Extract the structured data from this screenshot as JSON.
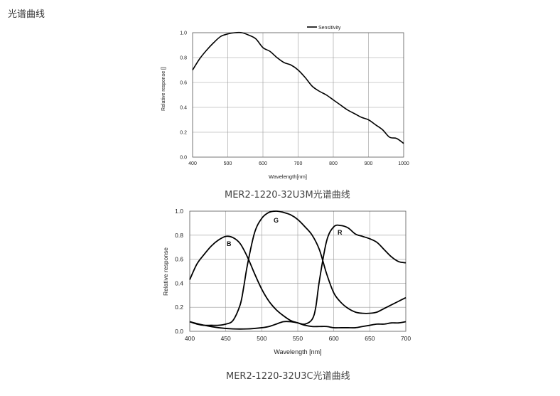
{
  "page": {
    "heading": "光谱曲线",
    "caption_mono": "MER2-1220-32U3M光谱曲线",
    "caption_color": "MER2-1220-32U3C光谱曲线"
  },
  "chart_data": [
    {
      "type": "line",
      "title": "",
      "xlabel": "Wavelength[nm]",
      "ylabel": "Relative response []",
      "xlim": [
        400,
        1000
      ],
      "ylim": [
        0,
        1.0
      ],
      "xticks": [
        "400",
        "500",
        "600",
        "700",
        "800",
        "900",
        "1000"
      ],
      "yticks": [
        "0.0",
        "0.2",
        "0.4",
        "0.6",
        "0.8",
        "1.0"
      ],
      "grid": true,
      "legend": "top-right",
      "series": [
        {
          "name": "Sensitivity",
          "x": [
            400,
            420,
            440,
            460,
            480,
            500,
            520,
            540,
            560,
            580,
            600,
            620,
            640,
            660,
            680,
            700,
            720,
            740,
            760,
            780,
            800,
            820,
            840,
            860,
            880,
            900,
            920,
            940,
            960,
            980,
            1000
          ],
          "y": [
            0.7,
            0.79,
            0.86,
            0.92,
            0.97,
            0.99,
            1.0,
            1.0,
            0.98,
            0.95,
            0.88,
            0.85,
            0.8,
            0.76,
            0.74,
            0.7,
            0.64,
            0.57,
            0.53,
            0.5,
            0.46,
            0.42,
            0.38,
            0.35,
            0.32,
            0.3,
            0.26,
            0.22,
            0.16,
            0.15,
            0.11
          ]
        }
      ]
    },
    {
      "type": "line",
      "title": "",
      "xlabel": "Wavelength [nm]",
      "ylabel": "Relative response",
      "xlim": [
        400,
        700
      ],
      "ylim": [
        0,
        1.0
      ],
      "xticks": [
        "400",
        "450",
        "500",
        "550",
        "600",
        "650",
        "700"
      ],
      "yticks": [
        "0.0",
        "0.2",
        "0.4",
        "0.6",
        "0.8",
        "1.0"
      ],
      "grid": true,
      "legend": "none",
      "series": [
        {
          "name": "B",
          "x": [
            400,
            410,
            420,
            430,
            440,
            450,
            460,
            470,
            480,
            490,
            500,
            510,
            520,
            530,
            540,
            550,
            560,
            570,
            580,
            590,
            600,
            610,
            620,
            630,
            640,
            650,
            660,
            670,
            680,
            690,
            700
          ],
          "y": [
            0.43,
            0.56,
            0.64,
            0.71,
            0.76,
            0.79,
            0.78,
            0.73,
            0.62,
            0.48,
            0.35,
            0.25,
            0.18,
            0.13,
            0.09,
            0.07,
            0.05,
            0.04,
            0.04,
            0.04,
            0.03,
            0.03,
            0.03,
            0.03,
            0.04,
            0.05,
            0.06,
            0.06,
            0.07,
            0.07,
            0.08
          ]
        },
        {
          "name": "G",
          "x": [
            400,
            410,
            420,
            430,
            440,
            450,
            460,
            470,
            475,
            480,
            490,
            500,
            510,
            520,
            530,
            540,
            550,
            560,
            570,
            580,
            590,
            600,
            610,
            620,
            630,
            640,
            650,
            660,
            670,
            680,
            690,
            700
          ],
          "y": [
            0.08,
            0.06,
            0.05,
            0.05,
            0.05,
            0.06,
            0.09,
            0.22,
            0.37,
            0.55,
            0.82,
            0.94,
            0.99,
            1.0,
            0.99,
            0.97,
            0.93,
            0.87,
            0.8,
            0.68,
            0.48,
            0.32,
            0.24,
            0.19,
            0.16,
            0.15,
            0.15,
            0.16,
            0.19,
            0.22,
            0.25,
            0.28
          ]
        },
        {
          "name": "R",
          "x": [
            400,
            420,
            440,
            460,
            480,
            500,
            510,
            520,
            530,
            540,
            550,
            560,
            570,
            575,
            580,
            590,
            600,
            610,
            620,
            630,
            640,
            650,
            660,
            670,
            680,
            690,
            700
          ],
          "y": [
            0.08,
            0.05,
            0.03,
            0.02,
            0.02,
            0.03,
            0.04,
            0.06,
            0.08,
            0.08,
            0.07,
            0.06,
            0.1,
            0.2,
            0.42,
            0.75,
            0.87,
            0.88,
            0.86,
            0.81,
            0.79,
            0.77,
            0.74,
            0.68,
            0.62,
            0.58,
            0.57
          ]
        }
      ],
      "annotations": [
        "B",
        "G",
        "R"
      ]
    }
  ]
}
